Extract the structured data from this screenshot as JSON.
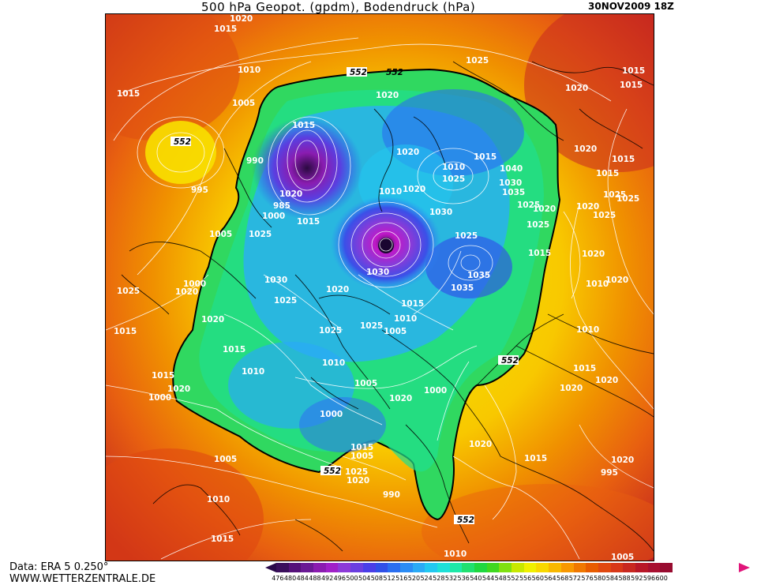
{
  "header": {
    "title": "500 hPa Geopot. (gpdm), Bodendruck (hPa)",
    "date": "30NOV2009 18Z"
  },
  "footer": {
    "data_source": "Data: ERA 5 0.250°",
    "website": "WWW.WETTERZENTRALE.DE"
  },
  "colorbar": {
    "ticks": [
      "476",
      "480",
      "484",
      "488",
      "492",
      "496",
      "500",
      "504",
      "508",
      "512",
      "516",
      "520",
      "524",
      "528",
      "532",
      "536",
      "540",
      "544",
      "548",
      "552",
      "556",
      "560",
      "564",
      "568",
      "572",
      "576",
      "580",
      "584",
      "588",
      "592",
      "596",
      "600"
    ],
    "colors": [
      "#3a0f5c",
      "#55127a",
      "#6a1a95",
      "#8a1cb0",
      "#a020c8",
      "#8c3ad8",
      "#6a3ee0",
      "#4a3ee8",
      "#3050e8",
      "#2a6ef0",
      "#2a8cf5",
      "#2aaaf5",
      "#22c8f0",
      "#1ee0d8",
      "#1ee8a8",
      "#20e070",
      "#20d840",
      "#40d820",
      "#80e010",
      "#c8e800",
      "#f0f000",
      "#f8d800",
      "#f8b800",
      "#f89800",
      "#f07800",
      "#e85c00",
      "#e04810",
      "#d83818",
      "#c82820",
      "#b81828",
      "#a81030",
      "#980c30"
    ]
  },
  "map": {
    "contour_552_label": "552",
    "pressure_labels": [
      {
        "t": "1015"
      },
      {
        "t": "1020"
      },
      {
        "t": "1010"
      },
      {
        "t": "1015"
      },
      {
        "t": "1005"
      },
      {
        "t": "552"
      },
      {
        "t": "1020"
      },
      {
        "t": "1015"
      },
      {
        "t": "990"
      },
      {
        "t": "995"
      },
      {
        "t": "1020"
      },
      {
        "t": "985"
      },
      {
        "t": "1000"
      },
      {
        "t": "1015"
      },
      {
        "t": "1005"
      },
      {
        "t": "1025"
      },
      {
        "t": "1020"
      },
      {
        "t": "1010"
      },
      {
        "t": "1020"
      },
      {
        "t": "1015"
      },
      {
        "t": "1010"
      },
      {
        "t": "1025"
      },
      {
        "t": "1030"
      },
      {
        "t": "1040"
      },
      {
        "t": "1035"
      },
      {
        "t": "1030"
      },
      {
        "t": "1025"
      },
      {
        "t": "1020"
      },
      {
        "t": "1025"
      },
      {
        "t": "1025"
      },
      {
        "t": "1030"
      },
      {
        "t": "1035"
      },
      {
        "t": "1035"
      },
      {
        "t": "1030"
      },
      {
        "t": "1000"
      },
      {
        "t": "1020"
      },
      {
        "t": "1025"
      },
      {
        "t": "1010"
      },
      {
        "t": "1020"
      },
      {
        "t": "1025"
      },
      {
        "t": "1020"
      },
      {
        "t": "1025"
      },
      {
        "t": "1015"
      },
      {
        "t": "1010"
      },
      {
        "t": "1005"
      },
      {
        "t": "1025"
      },
      {
        "t": "1015"
      },
      {
        "t": "1010"
      },
      {
        "t": "1005"
      },
      {
        "t": "1020"
      },
      {
        "t": "1000"
      },
      {
        "t": "1010"
      },
      {
        "t": "1015"
      },
      {
        "t": "1020"
      },
      {
        "t": "1000"
      },
      {
        "t": "1000"
      },
      {
        "t": "1020"
      },
      {
        "t": "1015"
      },
      {
        "t": "1015"
      },
      {
        "t": "1005"
      },
      {
        "t": "1025"
      },
      {
        "t": "1020"
      },
      {
        "t": "990"
      },
      {
        "t": "995"
      },
      {
        "t": "1005"
      },
      {
        "t": "1010"
      },
      {
        "t": "1015"
      },
      {
        "t": "1010"
      },
      {
        "t": "1005"
      },
      {
        "t": "1020"
      },
      {
        "t": "1020"
      },
      {
        "t": "1020"
      },
      {
        "t": "1015"
      },
      {
        "t": "1020"
      },
      {
        "t": "1010"
      },
      {
        "t": "1015"
      },
      {
        "t": "1015"
      },
      {
        "t": "1025"
      },
      {
        "t": "1015"
      },
      {
        "t": "1015"
      },
      {
        "t": "1025"
      },
      {
        "t": "1020"
      },
      {
        "t": "1020"
      },
      {
        "t": "1015"
      },
      {
        "t": "1015"
      },
      {
        "t": "1025"
      },
      {
        "t": "1020"
      },
      {
        "t": "1020"
      },
      {
        "t": "1025"
      }
    ]
  }
}
